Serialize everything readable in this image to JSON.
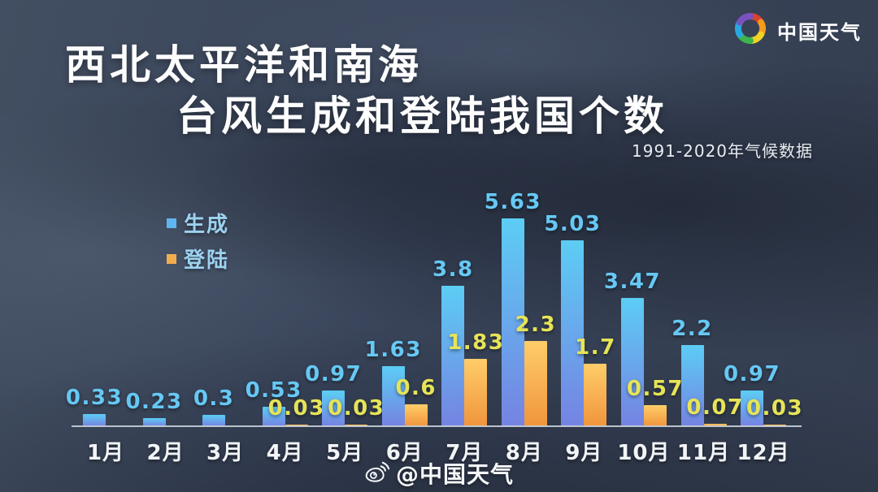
{
  "header": {
    "title_line1": "西北太平洋和南海",
    "title_line2": "台风生成和登陆我国个数",
    "subtitle": "1991-2020年气候数据"
  },
  "brand": {
    "logo_icon": "pinwheel-rainbow-swirl",
    "logo_text": "中国天气",
    "pinwheel_colors": [
      "#d8432f",
      "#f29b1d",
      "#f0d327",
      "#3cb54a",
      "#29a8df",
      "#7a52c0"
    ]
  },
  "legend": [
    {
      "label": "生成",
      "color": "#5fb6ee"
    },
    {
      "label": "登陆",
      "color": "#f2ae4c"
    }
  ],
  "watermark": {
    "icon": "weibo-icon",
    "handle": "@中国天气"
  },
  "chart_data": {
    "type": "bar",
    "title": "西北太平洋和南海台风生成和登陆我国个数",
    "subtitle": "1991-2020年气候数据",
    "xlabel": "",
    "ylabel": "",
    "ylim": [
      0,
      6
    ],
    "grid": false,
    "legend_position": "upper-left",
    "categories": [
      "1月",
      "2月",
      "3月",
      "4月",
      "5月",
      "6月",
      "7月",
      "8月",
      "9月",
      "10月",
      "11月",
      "12月"
    ],
    "series": [
      {
        "name": "生成",
        "values": [
          0.33,
          0.23,
          0.3,
          0.53,
          0.97,
          1.63,
          3.8,
          5.63,
          5.03,
          3.47,
          2.2,
          0.97
        ],
        "color_top": "#5ccdf5",
        "color_bottom": "#7583e2",
        "label_color": "#66c8f4"
      },
      {
        "name": "登陆",
        "values": [
          null,
          null,
          null,
          0.03,
          0.03,
          0.6,
          1.83,
          2.3,
          1.7,
          0.57,
          0.07,
          0.03
        ],
        "color_top": "#ffcd69",
        "color_bottom": "#f0953c",
        "label_color": "#e6e457"
      }
    ],
    "axis": {
      "line_color": "#c9d2da",
      "tick_label_color": "#f2f5f8"
    }
  }
}
